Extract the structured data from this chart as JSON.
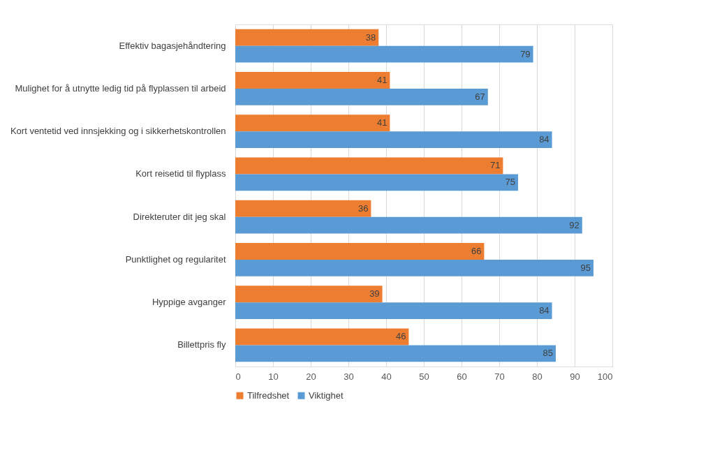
{
  "chart_data": {
    "type": "bar",
    "orientation": "horizontal",
    "categories": [
      "Effektiv bagasjehåndtering",
      "Mulighet for å utnytte ledig tid på flyplassen til arbeid",
      "Kort ventetid ved  innsjekking og i sikkerhetskontrollen",
      "Kort reisetid til flyplass",
      "Direkteruter dit jeg skal",
      "Punktlighet og regularitet",
      "Hyppige avganger",
      "Billettpris fly"
    ],
    "series": [
      {
        "name": "Tilfredshet",
        "color": "#ed7d31",
        "values": [
          38,
          41,
          41,
          71,
          36,
          66,
          39,
          46
        ]
      },
      {
        "name": "Viktighet",
        "color": "#5b9bd5",
        "values": [
          79,
          67,
          84,
          75,
          92,
          95,
          84,
          85
        ]
      }
    ],
    "xlim": [
      0,
      100
    ],
    "xticks": [
      0,
      10,
      20,
      30,
      40,
      50,
      60,
      70,
      80,
      90,
      100
    ],
    "grid": "x",
    "legend": "bottom left",
    "data_labels": true
  }
}
